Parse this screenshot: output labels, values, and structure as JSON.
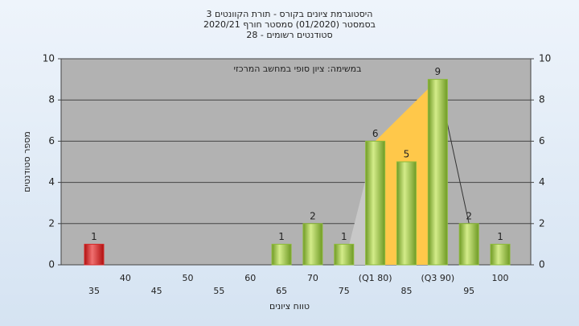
{
  "chart_data": {
    "type": "bar",
    "title": "היסטוגרמת ציונים בקורס - תורת הקוונטים 3",
    "subtitle": "בסמסטר  (01/2020)  סמסטר חורף 2020/21",
    "subtitle2": "סטודנטים רשומים - 28",
    "annotation": "במשימה: ציון סופי במחשב המרכזי",
    "x_label": "טווח ציונים",
    "y_label": "מספר סטודנטים",
    "categories": [
      "35",
      "40",
      "45",
      "50",
      "55",
      "60",
      "65",
      "70",
      "75",
      "(Q1 80)",
      "85",
      "(Q3 90)",
      "95",
      "100"
    ],
    "values": [
      1,
      0,
      0,
      0,
      0,
      0,
      1,
      2,
      1,
      6,
      5,
      9,
      2,
      1
    ],
    "colors": [
      "#d42a2a",
      "#8dbb3a",
      "#8dbb3a",
      "#8dbb3a",
      "#8dbb3a",
      "#8dbb3a",
      "#8dbb3a",
      "#8dbb3a",
      "#8dbb3a",
      "#8dbb3a",
      "#8dbb3a",
      "#8dbb3a",
      "#8dbb3a",
      "#8dbb3a"
    ],
    "ylim": [
      0,
      10
    ],
    "yticks": [
      0,
      2,
      4,
      6,
      8,
      10
    ],
    "y2lim": [
      0,
      10
    ],
    "y2ticks": [
      0,
      2,
      4,
      6,
      8,
      10
    ],
    "grid": true
  }
}
